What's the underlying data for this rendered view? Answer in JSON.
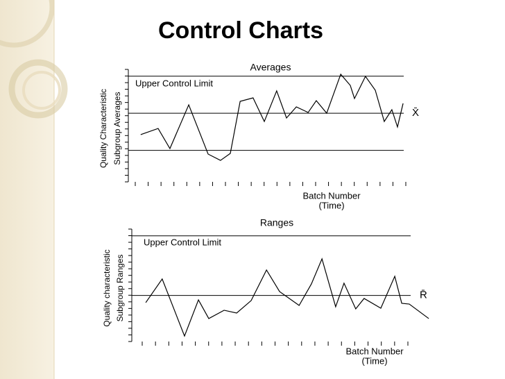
{
  "title": "Control Charts",
  "chart_data": [
    {
      "type": "line",
      "title": "Averages",
      "y_label": [
        "Quality Characteristic",
        "Subgroup Averages"
      ],
      "x_label": [
        "Batch Number",
        "(Time)"
      ],
      "xlim": [
        0,
        100
      ],
      "ylim": [
        0,
        100
      ],
      "x": [
        4.4,
        10.6,
        14.8,
        21.5,
        28.4,
        32.8,
        36.3,
        39.8,
        44.4,
        48.4,
        52.8,
        56.3,
        59.8,
        64,
        66.9,
        70.6,
        75.6,
        79,
        80.5,
        84.4,
        87.9,
        91.1,
        93.8,
        95.8,
        97.8
      ],
      "values": [
        42,
        47.5,
        29.6,
        68.5,
        24.7,
        19.1,
        25.3,
        71.6,
        74.7,
        53.7,
        80.9,
        56.8,
        66.7,
        61.7,
        72.2,
        61.1,
        95.7,
        85.8,
        74.1,
        93.8,
        81.5,
        53.7,
        64.2,
        48.8,
        69.8
      ],
      "color": "#000000",
      "control_lines": [
        {
          "label": "Upper Control Limit",
          "value": 94
        },
        {
          "label": "X̄",
          "value": 61
        },
        {
          "value": 28
        }
      ]
    },
    {
      "type": "line",
      "title": "Ranges",
      "y_label": [
        "Quality characteristic",
        "Subgroup Ranges"
      ],
      "x_label": [
        "Batch Number",
        "(Time)"
      ],
      "xlim": [
        0,
        100
      ],
      "ylim": [
        0,
        100
      ],
      "x": [
        5,
        10.9,
        18.9,
        23.9,
        27.6,
        33.1,
        37.6,
        42.8,
        48.3,
        53,
        60,
        64.4,
        68.2,
        73.1,
        76.1,
        80.3,
        83.3,
        89.3,
        94.3,
        96.8,
        99.5,
        106.5
      ],
      "values": [
        34.6,
        55.6,
        4.9,
        37,
        20.4,
        27.8,
        25.3,
        36.4,
        63.6,
        44.4,
        32.1,
        51.2,
        73.5,
        30.9,
        51.9,
        29,
        38.3,
        29.6,
        58,
        34,
        33.3,
        20.4
      ],
      "color": "#000000",
      "control_lines": [
        {
          "label": "Upper Control Limit",
          "value": 94
        },
        {
          "label": "R̄",
          "value": 41
        }
      ]
    }
  ]
}
